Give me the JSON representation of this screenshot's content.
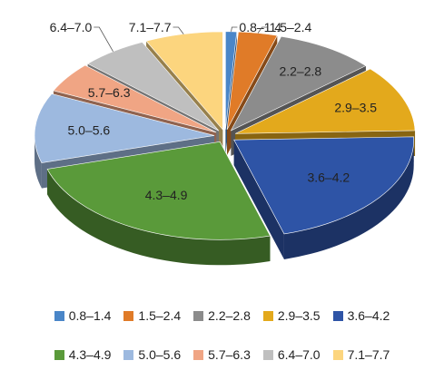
{
  "chart_data": {
    "type": "pie",
    "style": "3d-exploded",
    "categories": [
      "0.8–1.4",
      "1.5–2.4",
      "2.2–2.8",
      "2.9–3.5",
      "3.6–4.2",
      "4.3–4.9",
      "5.0–5.6",
      "5.7–6.3",
      "6.4–7.0",
      "7.1–7.7"
    ],
    "values": [
      1,
      3.5,
      9,
      11,
      21,
      25,
      11.5,
      5,
      6,
      7
    ],
    "colors": [
      "#4A86C8",
      "#E07B28",
      "#8C8C8C",
      "#E3A91C",
      "#2E54A6",
      "#5A9A3A",
      "#9DB9DF",
      "#F0A584",
      "#BFBFBF",
      "#FCD57E"
    ],
    "slice_labels": [
      "0.8–1.4",
      "1.5–2.4",
      "2.2–2.8",
      "2.9–3.5",
      "3.6–4.2",
      "4.3–4.9",
      "5.0–5.6",
      "5.7–6.3",
      "6.4–7.0",
      "7.1–7.7"
    ],
    "legend": {
      "placement": "bottom",
      "entries": [
        "0.8–1.4",
        "1.5–2.4",
        "2.2–2.8",
        "2.9–3.5",
        "3.6–4.2",
        "4.3–4.9",
        "5.0–5.6",
        "5.7–6.3",
        "6.4–7.0",
        "7.1–7.7"
      ]
    },
    "title": ""
  }
}
